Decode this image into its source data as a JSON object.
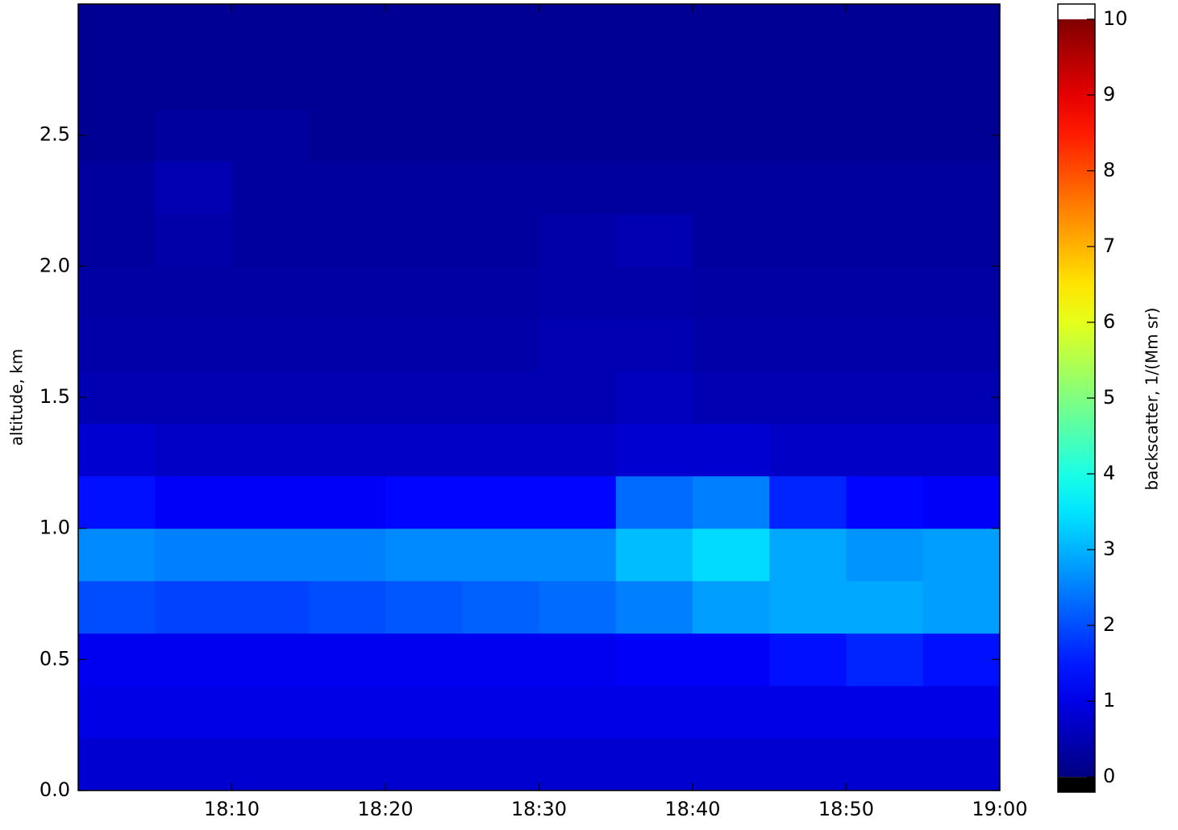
{
  "chart_data": {
    "type": "heatmap",
    "ylabel": "altitude, km",
    "colorbar_label": "backscatter, 1/(Mm sr)",
    "xlim": [
      0,
      60
    ],
    "xticks": [
      {
        "value": 10,
        "label": "18:10"
      },
      {
        "value": 20,
        "label": "18:20"
      },
      {
        "value": 30,
        "label": "18:30"
      },
      {
        "value": 40,
        "label": "18:40"
      },
      {
        "value": 50,
        "label": "18:50"
      },
      {
        "value": 60,
        "label": "19:00"
      }
    ],
    "ylim": [
      0,
      3.0
    ],
    "yticks": [
      {
        "value": 0,
        "label": "0.0"
      },
      0.5,
      {
        "value": 1,
        "label": "1.0"
      },
      1.5,
      {
        "value": 2,
        "label": "2.0"
      },
      2.5
    ],
    "clim": [
      -0.2,
      10.2
    ],
    "cticks": [
      0,
      1,
      2,
      3,
      4,
      5,
      6,
      7,
      8,
      9,
      10
    ],
    "colormap": "jet",
    "xbins": [
      0,
      5,
      10,
      15,
      20,
      25,
      30,
      35,
      40,
      45,
      50,
      55,
      60
    ],
    "ybins": [
      0,
      0.2,
      0.4,
      0.6,
      0.8,
      1.0,
      1.2,
      1.4,
      1.6,
      1.8,
      2.0,
      2.2,
      2.4,
      2.6,
      2.8,
      3.0
    ],
    "z": [
      [
        0.8,
        0.8,
        0.8,
        0.8,
        0.8,
        0.8,
        0.8,
        0.8,
        0.8,
        0.8,
        0.8,
        0.8
      ],
      [
        1.0,
        1.0,
        1.0,
        1.0,
        1.0,
        1.0,
        1.0,
        1.0,
        1.0,
        1.0,
        1.0,
        1.0
      ],
      [
        1.1,
        1.1,
        1.1,
        1.1,
        1.1,
        1.1,
        1.1,
        1.2,
        1.2,
        1.4,
        1.6,
        1.4
      ],
      [
        2.0,
        1.9,
        1.9,
        2.0,
        2.1,
        2.2,
        2.3,
        2.5,
        2.8,
        2.9,
        2.9,
        2.8
      ],
      [
        2.6,
        2.5,
        2.5,
        2.5,
        2.6,
        2.6,
        2.6,
        3.1,
        3.4,
        2.9,
        2.7,
        2.8
      ],
      [
        1.4,
        1.2,
        1.2,
        1.2,
        1.3,
        1.3,
        1.3,
        2.3,
        2.5,
        1.6,
        1.3,
        1.2
      ],
      [
        0.8,
        0.7,
        0.7,
        0.7,
        0.7,
        0.7,
        0.7,
        0.8,
        0.8,
        0.7,
        0.7,
        0.7
      ],
      [
        0.5,
        0.5,
        0.5,
        0.5,
        0.5,
        0.5,
        0.5,
        0.6,
        0.5,
        0.5,
        0.5,
        0.5
      ],
      [
        0.4,
        0.4,
        0.4,
        0.4,
        0.4,
        0.4,
        0.5,
        0.5,
        0.4,
        0.4,
        0.4,
        0.4
      ],
      [
        0.35,
        0.35,
        0.35,
        0.35,
        0.35,
        0.35,
        0.4,
        0.4,
        0.35,
        0.35,
        0.35,
        0.35
      ],
      [
        0.3,
        0.4,
        0.3,
        0.3,
        0.3,
        0.3,
        0.4,
        0.5,
        0.3,
        0.3,
        0.3,
        0.3
      ],
      [
        0.3,
        0.5,
        0.3,
        0.3,
        0.3,
        0.3,
        0.3,
        0.3,
        0.3,
        0.3,
        0.3,
        0.3
      ],
      [
        0.2,
        0.3,
        0.3,
        0.2,
        0.2,
        0.2,
        0.2,
        0.2,
        0.2,
        0.2,
        0.2,
        0.2
      ],
      [
        0.2,
        0.2,
        0.2,
        0.2,
        0.2,
        0.2,
        0.2,
        0.2,
        0.2,
        0.2,
        0.2,
        0.2
      ],
      [
        0.2,
        0.2,
        0.2,
        0.2,
        0.2,
        0.2,
        0.2,
        0.2,
        0.2,
        0.2,
        0.2,
        0.2
      ]
    ]
  }
}
